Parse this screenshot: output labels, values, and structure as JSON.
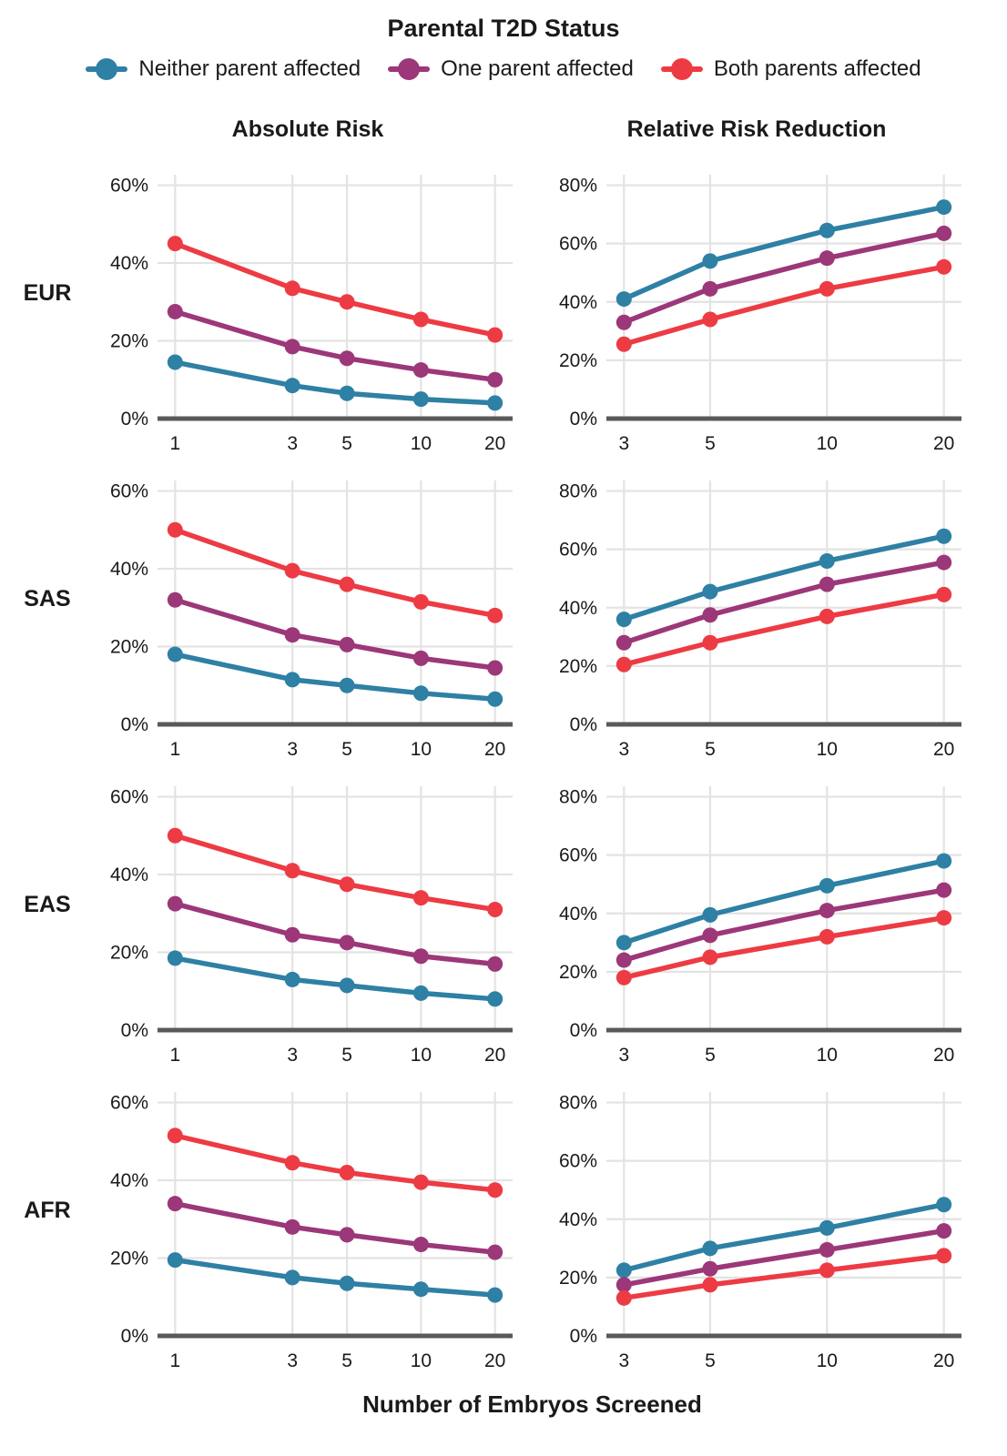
{
  "title": "Parental T2D Status",
  "x_axis_title": "Number of Embryos Screened",
  "column_titles": {
    "absolute": "Absolute Risk",
    "relative": "Relative Risk Reduction"
  },
  "rows": [
    "EUR",
    "SAS",
    "EAS",
    "AFR"
  ],
  "legend": {
    "items": [
      {
        "label": "Neither parent affected",
        "color": "#2E80A4"
      },
      {
        "label": "One parent affected",
        "color": "#9C3779"
      },
      {
        "label": "Both parents affected",
        "color": "#ED3B44"
      }
    ]
  },
  "style": {
    "grid_color": "#E3E3E3",
    "axis_color": "#595959",
    "text_color": "#1A1A1A"
  },
  "chart_data": [
    {
      "type": "line",
      "row": "EUR",
      "column": "absolute",
      "title": "Absolute Risk",
      "x_scale": "log10",
      "x": [
        1,
        3,
        5,
        10,
        20
      ],
      "ylim": [
        0,
        60
      ],
      "yticks": [
        0,
        20,
        40,
        60
      ],
      "y_unit": "%",
      "series": [
        {
          "name": "Neither parent affected",
          "values": [
            14.5,
            8.5,
            6.5,
            5,
            4
          ]
        },
        {
          "name": "One parent affected",
          "values": [
            27.5,
            18.5,
            15.5,
            12.5,
            10
          ]
        },
        {
          "name": "Both parents affected",
          "values": [
            45,
            33.5,
            30,
            25.5,
            21.5
          ]
        }
      ]
    },
    {
      "type": "line",
      "row": "EUR",
      "column": "relative",
      "title": "Relative Risk Reduction",
      "x_scale": "log10",
      "x": [
        3,
        5,
        10,
        20
      ],
      "ylim": [
        0,
        80
      ],
      "yticks": [
        0,
        20,
        40,
        60,
        80
      ],
      "y_unit": "%",
      "series": [
        {
          "name": "Neither parent affected",
          "values": [
            41,
            54,
            64.5,
            72.5
          ]
        },
        {
          "name": "One parent affected",
          "values": [
            33,
            44.5,
            55,
            63.5
          ]
        },
        {
          "name": "Both parents affected",
          "values": [
            25.5,
            34,
            44.5,
            52
          ]
        }
      ]
    },
    {
      "type": "line",
      "row": "SAS",
      "column": "absolute",
      "title": "Absolute Risk",
      "x_scale": "log10",
      "x": [
        1,
        3,
        5,
        10,
        20
      ],
      "ylim": [
        0,
        60
      ],
      "yticks": [
        0,
        20,
        40,
        60
      ],
      "y_unit": "%",
      "series": [
        {
          "name": "Neither parent affected",
          "values": [
            18,
            11.5,
            10,
            8,
            6.5
          ]
        },
        {
          "name": "One parent affected",
          "values": [
            32,
            23,
            20.5,
            17,
            14.5
          ]
        },
        {
          "name": "Both parents affected",
          "values": [
            50,
            39.5,
            36,
            31.5,
            28
          ]
        }
      ]
    },
    {
      "type": "line",
      "row": "SAS",
      "column": "relative",
      "title": "Relative Risk Reduction",
      "x_scale": "log10",
      "x": [
        3,
        5,
        10,
        20
      ],
      "ylim": [
        0,
        80
      ],
      "yticks": [
        0,
        20,
        40,
        60,
        80
      ],
      "y_unit": "%",
      "series": [
        {
          "name": "Neither parent affected",
          "values": [
            36,
            45.5,
            56,
            64.5
          ]
        },
        {
          "name": "One parent affected",
          "values": [
            28,
            37.5,
            48,
            55.5
          ]
        },
        {
          "name": "Both parents affected",
          "values": [
            20.5,
            28,
            37,
            44.5
          ]
        }
      ]
    },
    {
      "type": "line",
      "row": "EAS",
      "column": "absolute",
      "title": "Absolute Risk",
      "x_scale": "log10",
      "x": [
        1,
        3,
        5,
        10,
        20
      ],
      "ylim": [
        0,
        60
      ],
      "yticks": [
        0,
        20,
        40,
        60
      ],
      "y_unit": "%",
      "series": [
        {
          "name": "Neither parent affected",
          "values": [
            18.5,
            13,
            11.5,
            9.5,
            8
          ]
        },
        {
          "name": "One parent affected",
          "values": [
            32.5,
            24.5,
            22.5,
            19,
            17
          ]
        },
        {
          "name": "Both parents affected",
          "values": [
            50,
            41,
            37.5,
            34,
            31
          ]
        }
      ]
    },
    {
      "type": "line",
      "row": "EAS",
      "column": "relative",
      "title": "Relative Risk Reduction",
      "x_scale": "log10",
      "x": [
        3,
        5,
        10,
        20
      ],
      "ylim": [
        0,
        80
      ],
      "yticks": [
        0,
        20,
        40,
        60,
        80
      ],
      "y_unit": "%",
      "series": [
        {
          "name": "Neither parent affected",
          "values": [
            30,
            39.5,
            49.5,
            58
          ]
        },
        {
          "name": "One parent affected",
          "values": [
            24,
            32.5,
            41,
            48
          ]
        },
        {
          "name": "Both parents affected",
          "values": [
            18,
            25,
            32,
            38.5
          ]
        }
      ]
    },
    {
      "type": "line",
      "row": "AFR",
      "column": "absolute",
      "title": "Absolute Risk",
      "x_scale": "log10",
      "x": [
        1,
        3,
        5,
        10,
        20
      ],
      "ylim": [
        0,
        60
      ],
      "yticks": [
        0,
        20,
        40,
        60
      ],
      "y_unit": "%",
      "series": [
        {
          "name": "Neither parent affected",
          "values": [
            19.5,
            15,
            13.5,
            12,
            10.5
          ]
        },
        {
          "name": "One parent affected",
          "values": [
            34,
            28,
            26,
            23.5,
            21.5
          ]
        },
        {
          "name": "Both parents affected",
          "values": [
            51.5,
            44.5,
            42,
            39.5,
            37.5
          ]
        }
      ]
    },
    {
      "type": "line",
      "row": "AFR",
      "column": "relative",
      "title": "Relative Risk Reduction",
      "x_scale": "log10",
      "x": [
        3,
        5,
        10,
        20
      ],
      "ylim": [
        0,
        80
      ],
      "yticks": [
        0,
        20,
        40,
        60,
        80
      ],
      "y_unit": "%",
      "series": [
        {
          "name": "Neither parent affected",
          "values": [
            22.5,
            30,
            37,
            45
          ]
        },
        {
          "name": "One parent affected",
          "values": [
            17.5,
            23,
            29.5,
            36
          ]
        },
        {
          "name": "Both parents affected",
          "values": [
            13,
            17.5,
            22.5,
            27.5
          ]
        }
      ]
    }
  ]
}
